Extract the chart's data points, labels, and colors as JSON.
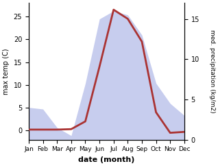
{
  "months": [
    "Jan",
    "Feb",
    "Mar",
    "Apr",
    "May",
    "Jun",
    "Jul",
    "Aug",
    "Sep",
    "Oct",
    "Nov",
    "Dec"
  ],
  "month_positions": [
    1,
    2,
    3,
    4,
    5,
    6,
    7,
    8,
    9,
    10,
    11,
    12
  ],
  "temp_data": [
    0.2,
    0.2,
    0.2,
    0.3,
    2.0,
    14.0,
    26.5,
    24.5,
    19.5,
    4.0,
    -0.5,
    -0.3
  ],
  "precip_data": [
    4.0,
    3.8,
    1.5,
    0.5,
    7.0,
    15.0,
    16.0,
    15.5,
    13.0,
    7.0,
    4.5,
    3.0
  ],
  "temp_color": "#aa3333",
  "precip_color_fill": "#b0b8e8",
  "title": "",
  "xlabel": "date (month)",
  "ylabel_left": "max temp (C)",
  "ylabel_right": "med. precipitation (kg/m2)",
  "ylim_left": [
    -2,
    28
  ],
  "ylim_right": [
    0,
    17
  ],
  "yticks_left": [
    0,
    5,
    10,
    15,
    20,
    25
  ],
  "yticks_right": [
    0,
    5,
    10,
    15
  ],
  "bg_color": "#ffffff",
  "linewidth": 2.0,
  "fill_alpha": 0.7
}
